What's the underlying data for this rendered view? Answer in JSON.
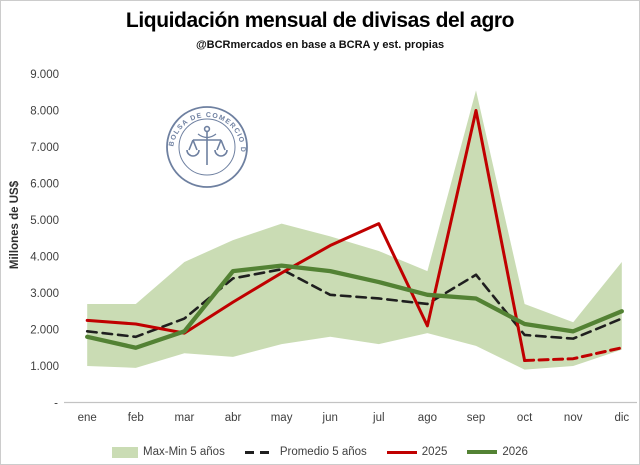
{
  "header": {
    "title": "Liquidación mensual de divisas del agro",
    "subtitle": "@BCRmercados en base a BCRA y est. propias"
  },
  "y_axis": {
    "title": "Millones de US$",
    "tick_labels": [
      "9.000",
      "8.000",
      "7.000",
      "6.000",
      "5.000",
      "4.000",
      "3.000",
      "2.000",
      "1.000"
    ],
    "tick_values": [
      9000,
      8000,
      7000,
      6000,
      5000,
      4000,
      3000,
      2000,
      1000
    ],
    "zero_label": "-"
  },
  "x_axis": {
    "categories": [
      "ene",
      "feb",
      "mar",
      "abr",
      "may",
      "jun",
      "jul",
      "ago",
      "sep",
      "oct",
      "nov",
      "dic"
    ]
  },
  "legend": {
    "items": [
      {
        "label": "Max-Min 5 años",
        "swatch": "band",
        "color": "#cadcb4"
      },
      {
        "label": "Promedio 5 años",
        "swatch": "dashed-line",
        "color": "#1f1f1f"
      },
      {
        "label": "2025",
        "swatch": "solid-line",
        "color": "#c00000"
      },
      {
        "label": "2026",
        "swatch": "solid-line",
        "color": "#538234"
      }
    ]
  },
  "logo": {
    "text": "BOLSA DE COMERCIO DE ROSARIO"
  },
  "chart_data": {
    "type": "line",
    "title": "Liquidación mensual de divisas del agro",
    "subtitle": "@BCRmercados en base a BCRA y est. propias",
    "xlabel": "",
    "ylabel": "Millones de US$",
    "ylim": [
      0,
      9000
    ],
    "grid": false,
    "legend_position": "bottom",
    "categories": [
      "ene",
      "feb",
      "mar",
      "abr",
      "may",
      "jun",
      "jul",
      "ago",
      "sep",
      "oct",
      "nov",
      "dic"
    ],
    "band": {
      "name": "Max-Min 5 años",
      "color": "#cadcb4",
      "max": [
        2700,
        2700,
        3850,
        4450,
        4900,
        4550,
        4150,
        3600,
        8550,
        2700,
        2200,
        3850
      ],
      "min": [
        1000,
        950,
        1350,
        1250,
        1600,
        1800,
        1600,
        1900,
        1550,
        900,
        1000,
        1450
      ]
    },
    "series": [
      {
        "name": "Promedio 5 años",
        "color": "#1f1f1f",
        "style": "dashed",
        "width": 2.6,
        "values": [
          1950,
          1800,
          2300,
          3400,
          3650,
          2950,
          2850,
          2700,
          3500,
          1850,
          1750,
          2300
        ]
      },
      {
        "name": "2025",
        "color": "#c00000",
        "style": "solid_then_dashed",
        "dashed_from_index": 9,
        "width": 3,
        "values": [
          2250,
          2150,
          1900,
          2750,
          3550,
          4300,
          4900,
          2100,
          8000,
          1150,
          1200,
          1500
        ]
      },
      {
        "name": "2026",
        "color": "#538234",
        "style": "solid",
        "width": 4.3,
        "values": [
          1800,
          1500,
          1950,
          3600,
          3750,
          3600,
          3300,
          2950,
          2850,
          2150,
          1950,
          2500
        ]
      }
    ]
  }
}
